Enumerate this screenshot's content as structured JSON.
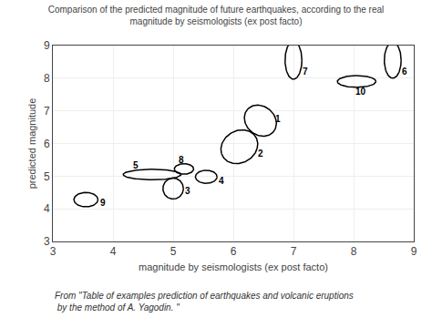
{
  "chart_data": {
    "type": "ellipse",
    "title": "Comparison of the predicted magnitude of future earthquakes, according to the real\nmagnitude by seismologists (ex post facto)",
    "xlabel": "magnitude by seismologists (ex post facto)",
    "ylabel": "predicted magnitude",
    "footnote": "From \"Table of examples prediction of earthquakes and volcanic eruptions\n by the method of A. Yagodin. \"",
    "xlim": [
      3,
      9
    ],
    "ylim": [
      3,
      9
    ],
    "xticks": [
      3,
      4,
      5,
      6,
      7,
      8,
      9
    ],
    "yticks": [
      3,
      4,
      5,
      6,
      7,
      8,
      9
    ],
    "grid": true,
    "color": "black",
    "ellipses": [
      {
        "label": "7",
        "cx": 7.0,
        "cy": 8.55,
        "rx": 0.14,
        "ry": 0.58,
        "angle": 0,
        "label_x": 7.12,
        "label_y": 8.2
      },
      {
        "label": "10",
        "cx": 8.05,
        "cy": 7.9,
        "rx": 0.32,
        "ry": 0.18,
        "angle": 0,
        "label_x": 8.0,
        "label_y": 7.58
      },
      {
        "label": "6",
        "cx": 8.65,
        "cy": 8.55,
        "rx": 0.14,
        "ry": 0.55,
        "angle": 0,
        "label_x": 8.77,
        "label_y": 8.2
      },
      {
        "label": "1",
        "cx": 6.45,
        "cy": 6.7,
        "rx": 0.26,
        "ry": 0.48,
        "angle": 8,
        "label_x": 6.67,
        "label_y": 6.75
      },
      {
        "label": "2",
        "cx": 6.1,
        "cy": 5.9,
        "rx": 0.3,
        "ry": 0.52,
        "angle": -8,
        "label_x": 6.38,
        "label_y": 5.7
      },
      {
        "label": "5",
        "cx": 4.65,
        "cy": 5.05,
        "rx": 0.48,
        "ry": 0.16,
        "angle": 0,
        "label_x": 4.3,
        "label_y": 5.33
      },
      {
        "label": "8",
        "cx": 5.18,
        "cy": 5.22,
        "rx": 0.16,
        "ry": 0.16,
        "angle": 0,
        "label_x": 5.06,
        "label_y": 5.5
      },
      {
        "label": "3",
        "cx": 5.0,
        "cy": 4.62,
        "rx": 0.17,
        "ry": 0.32,
        "angle": 0,
        "label_x": 5.16,
        "label_y": 4.54
      },
      {
        "label": "4",
        "cx": 5.55,
        "cy": 4.98,
        "rx": 0.18,
        "ry": 0.2,
        "angle": 0,
        "label_x": 5.73,
        "label_y": 4.86
      },
      {
        "label": "9",
        "cx": 3.55,
        "cy": 4.28,
        "rx": 0.2,
        "ry": 0.22,
        "angle": 0,
        "label_x": 3.75,
        "label_y": 4.2
      }
    ]
  }
}
